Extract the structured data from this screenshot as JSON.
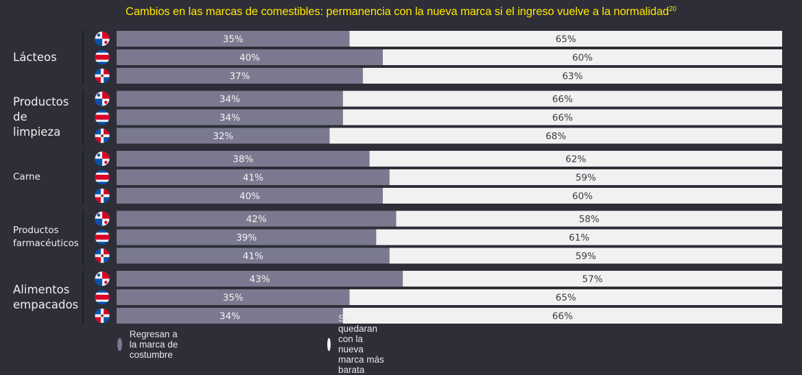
{
  "title": "Cambios en las marcas de comestibles: permanencia con la nueva marca si el ingreso vuelve a la normalidad",
  "title_footnote": "20",
  "colors": {
    "background": "#2e2e38",
    "title": "#ffe600",
    "series_return": "#7a798f",
    "series_stay": "#f1f1f1",
    "label_on_dark": "#f4f4f4",
    "label_on_light": "#3a3a42"
  },
  "countries": {
    "PA": "Panamá",
    "CR": "Costa Rica",
    "DO": "República Dominicana"
  },
  "legend": [
    {
      "key": "return",
      "label": "Regresan a la marca de costumbre"
    },
    {
      "key": "stay",
      "label": "Se quedaran con la nueva marca más barata"
    }
  ],
  "chart_data": {
    "type": "bar",
    "orientation": "horizontal",
    "stacked": true,
    "title": "Cambios en las marcas de comestibles: permanencia con la nueva marca si el ingreso vuelve a la normalidad",
    "xlim": [
      0,
      100
    ],
    "unit": "%",
    "legend_position": "bottom",
    "series_names": [
      "Regresan a la marca de costumbre",
      "Se quedaran con la nueva marca más barata"
    ],
    "groups": [
      {
        "label": "Lácteos",
        "label_lines": [
          "Lácteos"
        ],
        "label_size": "big",
        "rows": [
          {
            "country": "PA",
            "return": 35,
            "stay": 65
          },
          {
            "country": "CR",
            "return": 40,
            "stay": 60
          },
          {
            "country": "DO",
            "return": 37,
            "stay": 63
          }
        ]
      },
      {
        "label": "Productos de limpieza",
        "label_lines": [
          "Productos",
          "de",
          "limpieza"
        ],
        "label_size": "big",
        "rows": [
          {
            "country": "PA",
            "return": 34,
            "stay": 66
          },
          {
            "country": "CR",
            "return": 34,
            "stay": 66
          },
          {
            "country": "DO",
            "return": 32,
            "stay": 68
          }
        ]
      },
      {
        "label": "Carne",
        "label_lines": [
          "Carne"
        ],
        "label_size": "small",
        "rows": [
          {
            "country": "PA",
            "return": 38,
            "stay": 62
          },
          {
            "country": "CR",
            "return": 41,
            "stay": 59
          },
          {
            "country": "DO",
            "return": 40,
            "stay": 60
          }
        ]
      },
      {
        "label": "Productos farmacéuticos",
        "label_lines": [
          "Productos",
          "farmacéuticos"
        ],
        "label_size": "small",
        "rows": [
          {
            "country": "PA",
            "return": 42,
            "stay": 58
          },
          {
            "country": "CR",
            "return": 39,
            "stay": 61
          },
          {
            "country": "DO",
            "return": 41,
            "stay": 59
          }
        ]
      },
      {
        "label": "Alimentos empacados",
        "label_lines": [
          "Alimentos",
          "empacados"
        ],
        "label_size": "big",
        "rows": [
          {
            "country": "PA",
            "return": 43,
            "stay": 57
          },
          {
            "country": "CR",
            "return": 35,
            "stay": 65
          },
          {
            "country": "DO",
            "return": 34,
            "stay": 66
          }
        ]
      }
    ]
  }
}
